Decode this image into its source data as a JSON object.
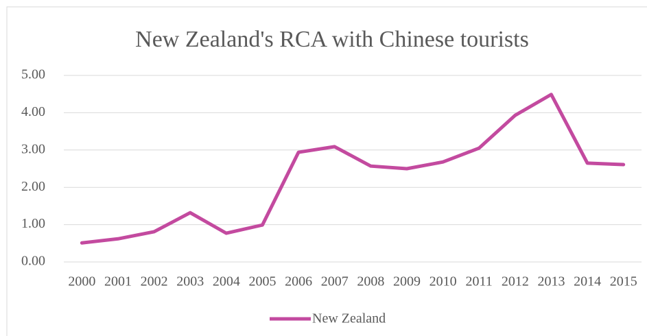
{
  "chart_data": {
    "type": "line",
    "title": "New Zealand's RCA with Chinese tourists",
    "categories": [
      "2000",
      "2001",
      "2002",
      "2003",
      "2004",
      "2005",
      "2006",
      "2007",
      "2008",
      "2009",
      "2010",
      "2011",
      "2012",
      "2013",
      "2014",
      "2015"
    ],
    "series": [
      {
        "name": "New Zealand",
        "color": "#c34a9f",
        "values": [
          0.51,
          0.62,
          0.81,
          1.32,
          0.77,
          0.99,
          2.94,
          3.09,
          2.57,
          2.5,
          2.68,
          3.05,
          3.93,
          4.49,
          2.65,
          2.61
        ]
      }
    ],
    "ylim": [
      0,
      5
    ],
    "yticks": [
      {
        "value": 0,
        "label": "0.00"
      },
      {
        "value": 1,
        "label": "1.00"
      },
      {
        "value": 2,
        "label": "2.00"
      },
      {
        "value": 3,
        "label": "3.00"
      },
      {
        "value": 4,
        "label": "4.00"
      },
      {
        "value": 5,
        "label": "5.00"
      }
    ],
    "grid": true,
    "legend": "bottom"
  }
}
